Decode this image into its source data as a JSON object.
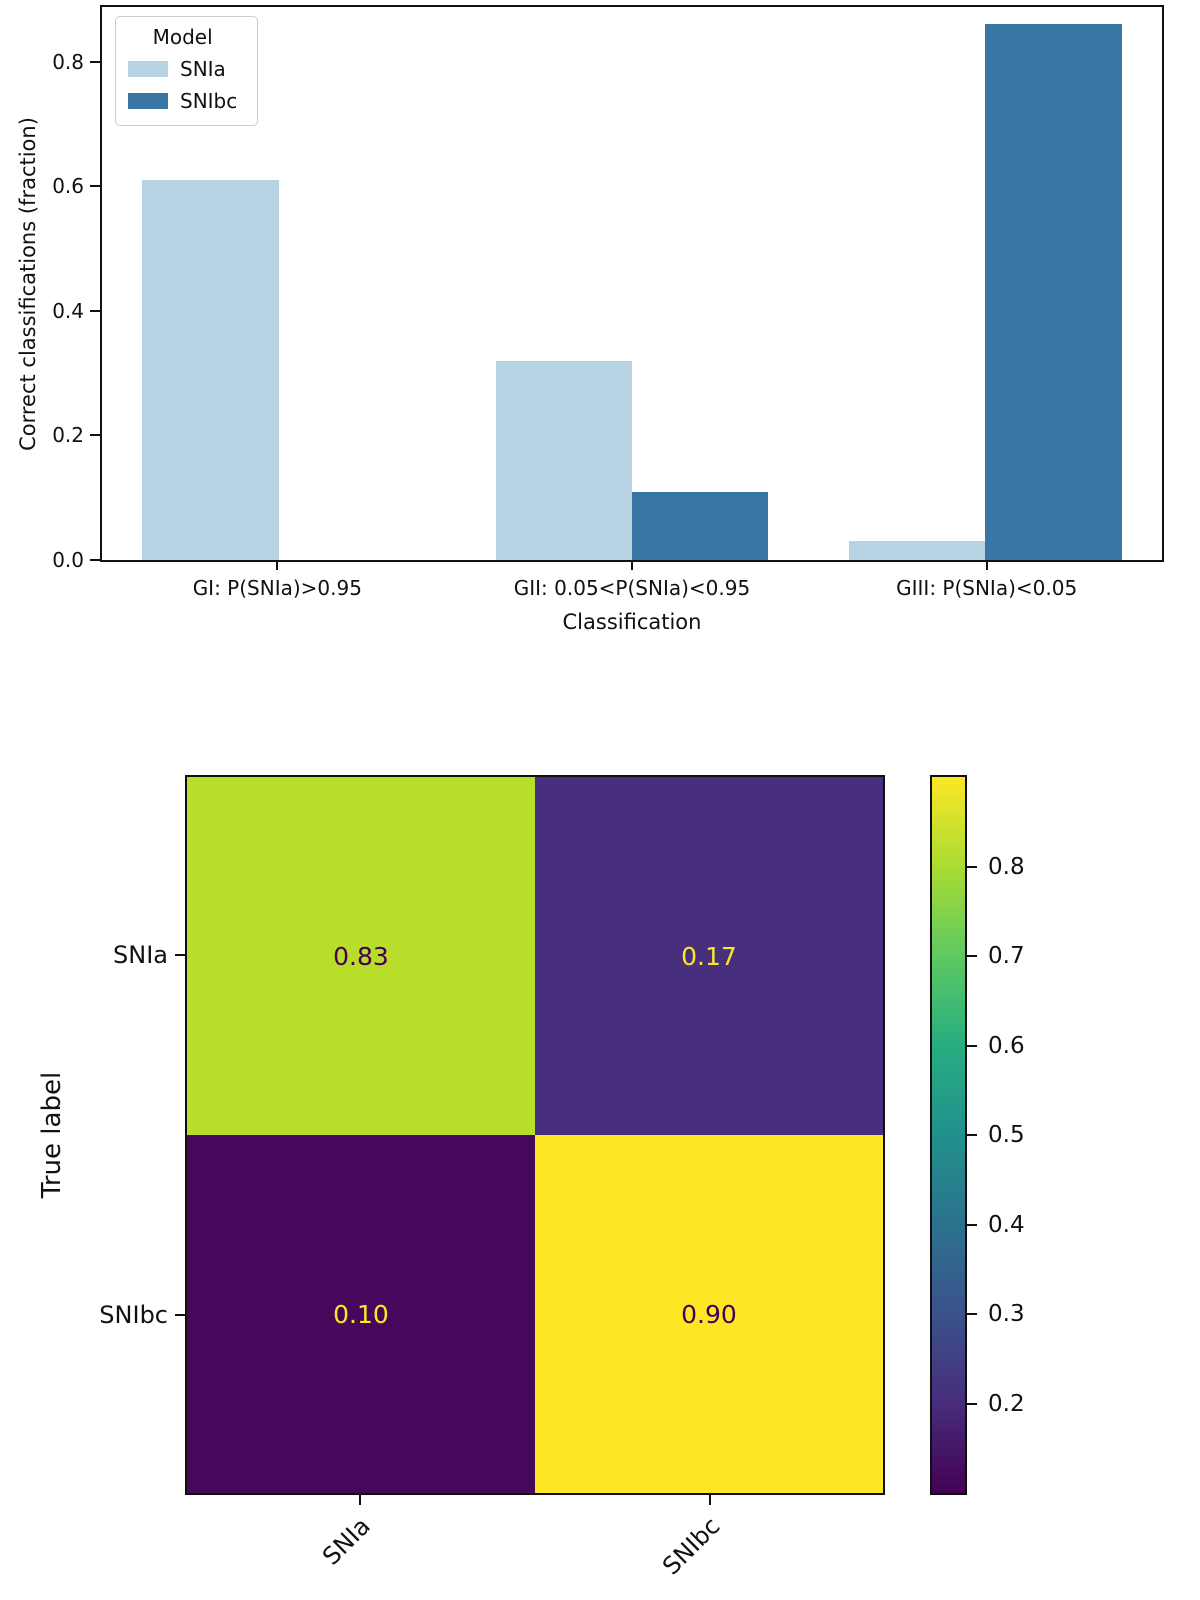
{
  "chart_data": [
    {
      "type": "bar",
      "xlabel": "Classification",
      "ylabel": "Correct classifications (fraction)",
      "categories": [
        "GI: P(SNIa)>0.95",
        "GII: 0.05<P(SNIa)<0.95",
        "GIII: P(SNIa)<0.05"
      ],
      "series": [
        {
          "name": "SNIa",
          "color": "#b7d3e3",
          "values": [
            0.61,
            0.32,
            0.03
          ]
        },
        {
          "name": "SNIbc",
          "color": "#3a76a4",
          "values": [
            0.0,
            0.11,
            0.86
          ]
        }
      ],
      "legend": {
        "title": "Model",
        "position": "upper-left"
      },
      "ylim": [
        0,
        0.888
      ],
      "yticks": [
        "0.0",
        "0.2",
        "0.4",
        "0.6",
        "0.8"
      ],
      "grid": false
    },
    {
      "type": "heatmap",
      "ylabel": "True label",
      "row_labels": [
        "SNIa",
        "SNIbc"
      ],
      "col_labels": [
        "SNIa",
        "SNIbc"
      ],
      "values": [
        [
          0.83,
          0.17
        ],
        [
          0.1,
          0.9
        ]
      ],
      "cell_labels": [
        [
          "0.83",
          "0.17"
        ],
        [
          "0.10",
          "0.90"
        ]
      ],
      "cell_colors": [
        [
          "#b8de29",
          "#472f7d"
        ],
        [
          "#45085b",
          "#fde725"
        ]
      ],
      "cell_text_colors": [
        [
          "#440154",
          "#fde725"
        ],
        [
          "#fde725",
          "#440154"
        ]
      ],
      "colorbar": {
        "colormap": "viridis",
        "vmin": 0.1,
        "vmax": 0.9,
        "ticks": [
          "0.8",
          "0.7",
          "0.6",
          "0.5",
          "0.4",
          "0.3",
          "0.2"
        ]
      }
    }
  ]
}
